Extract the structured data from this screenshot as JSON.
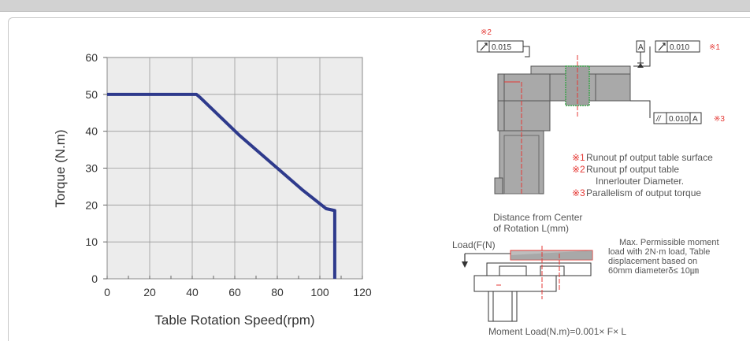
{
  "chart_data": {
    "type": "line",
    "xlabel": "Table Rotation Speed(rpm)",
    "ylabel": "Torque (N.m)",
    "xlim": [
      0,
      120
    ],
    "ylim": [
      0,
      60
    ],
    "x_ticks": [
      "0",
      "20",
      "40",
      "60",
      "80",
      "100",
      "120"
    ],
    "y_ticks": [
      "0",
      "10",
      "20",
      "30",
      "40",
      "50",
      "60"
    ],
    "grid": true,
    "series": [
      {
        "x": [
          0,
          42,
          44,
          62,
          80,
          92,
          103,
          107,
          107
        ],
        "y": [
          50,
          50,
          49,
          39,
          30,
          24,
          19,
          18.5,
          0
        ]
      }
    ],
    "colors": {
      "line": "#2e3a8c",
      "plot_bg": "#ececec",
      "grid": "#9a9a9a"
    }
  },
  "diagram": {
    "note2_mark": "※2",
    "note1_mark": "※1",
    "note3_mark": "※3",
    "runout_box": "0.015",
    "datum_a": "A",
    "runout_box2": "0.010",
    "parallel_box": "0.010",
    "parallel_datum": "A",
    "legend": [
      {
        "mark": "※1",
        "text": "Runout pf output table surface"
      },
      {
        "mark": "※2",
        "text": "Runout pf output table"
      },
      {
        "mark": "",
        "text": "Innerlouter Diameter."
      },
      {
        "mark": "※3",
        "text": "Parallelism of output torque"
      }
    ],
    "distance_label_1": "Distance from Center",
    "distance_label_2": "of Rotation L(mm)",
    "load_label": "Load(F(N)",
    "max_moment": [
      "Max. Permissible moment",
      "load with 2N·m load, Table",
      "displacement based on",
      "60mm diameterδ≤ 10㎛"
    ],
    "moment_formula": "Moment Load(N.m)=0.001× F× L",
    "colors": {
      "accent": "#e53935",
      "part_fill": "#a9a9a9",
      "part_dark": "#7d7d7d",
      "green": "#3fa34d"
    }
  }
}
